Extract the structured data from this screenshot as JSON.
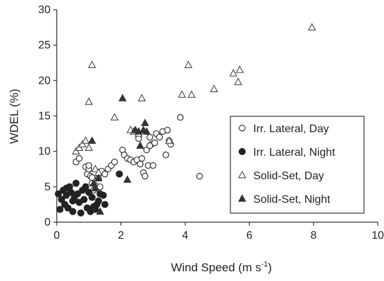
{
  "chart_data": {
    "type": "scatter",
    "xlabel": "Wind Speed (m s",
    "xlabel_sup": "-1",
    "xlabel_close": ")",
    "ylabel": "WDEL (%)",
    "xlim": [
      0,
      10
    ],
    "ylim": [
      0,
      30
    ],
    "x_ticks": [
      0,
      2,
      4,
      6,
      8,
      10
    ],
    "y_ticks": [
      0,
      5,
      10,
      15,
      20,
      25,
      30
    ],
    "x_tick_labels": [
      "0",
      "2",
      "4",
      "6",
      "8",
      "10"
    ],
    "y_tick_labels": [
      "0",
      "5",
      "10",
      "15",
      "20",
      "25",
      "30"
    ],
    "grid": false,
    "legend_position": "right",
    "series": [
      {
        "name": "Irr. Lateral, Day",
        "marker": "circle-open",
        "points": [
          [
            0.6,
            8.5
          ],
          [
            0.7,
            9.0
          ],
          [
            0.9,
            7.8
          ],
          [
            0.95,
            6.8
          ],
          [
            1.0,
            7.5
          ],
          [
            1.05,
            6.5
          ],
          [
            1.1,
            5.5
          ],
          [
            1.15,
            4.5
          ],
          [
            1.2,
            5.2
          ],
          [
            1.3,
            6.2
          ],
          [
            1.35,
            5.0
          ],
          [
            1.4,
            7.2
          ],
          [
            1.5,
            6.8
          ],
          [
            1.6,
            7.5
          ],
          [
            1.7,
            8.0
          ],
          [
            1.8,
            8.5
          ],
          [
            2.05,
            10.2
          ],
          [
            2.1,
            9.5
          ],
          [
            2.2,
            9.0
          ],
          [
            2.3,
            8.8
          ],
          [
            2.4,
            8.5
          ],
          [
            2.5,
            8.8
          ],
          [
            2.55,
            11.8
          ],
          [
            2.6,
            8.2
          ],
          [
            2.65,
            9.0
          ],
          [
            2.7,
            7.0
          ],
          [
            2.75,
            6.5
          ],
          [
            2.8,
            10.2
          ],
          [
            2.85,
            8.0
          ],
          [
            2.9,
            12.0
          ],
          [
            2.95,
            11.0
          ],
          [
            3.0,
            8.0
          ],
          [
            3.05,
            11.2
          ],
          [
            3.1,
            12.5
          ],
          [
            3.2,
            12.0
          ],
          [
            3.3,
            12.8
          ],
          [
            3.4,
            9.5
          ],
          [
            3.45,
            13.0
          ],
          [
            3.5,
            11.5
          ],
          [
            3.55,
            11.0
          ],
          [
            3.85,
            14.8
          ],
          [
            4.45,
            6.5
          ],
          [
            1.0,
            8.0
          ],
          [
            1.1,
            6.3
          ],
          [
            2.9,
            10.8
          ]
        ]
      },
      {
        "name": "Irr. Lateral, Night",
        "marker": "circle-filled",
        "points": [
          [
            0.05,
            4.0
          ],
          [
            0.1,
            1.8
          ],
          [
            0.15,
            3.2
          ],
          [
            0.2,
            4.5
          ],
          [
            0.25,
            2.5
          ],
          [
            0.3,
            3.8
          ],
          [
            0.35,
            2.0
          ],
          [
            0.4,
            5.0
          ],
          [
            0.45,
            4.2
          ],
          [
            0.5,
            1.5
          ],
          [
            0.55,
            3.5
          ],
          [
            0.6,
            5.5
          ],
          [
            0.65,
            4.0
          ],
          [
            0.7,
            2.8
          ],
          [
            0.75,
            1.3
          ],
          [
            0.8,
            4.5
          ],
          [
            0.85,
            3.2
          ],
          [
            0.9,
            5.0
          ],
          [
            0.95,
            2.0
          ],
          [
            1.0,
            4.2
          ],
          [
            1.05,
            1.5
          ],
          [
            1.1,
            3.5
          ],
          [
            1.15,
            2.2
          ],
          [
            1.2,
            1.8
          ],
          [
            1.25,
            2.5
          ],
          [
            1.3,
            3.0
          ],
          [
            1.35,
            4.0
          ],
          [
            1.45,
            3.8
          ],
          [
            1.5,
            2.5
          ],
          [
            1.95,
            6.8
          ],
          [
            0.3,
            4.8
          ],
          [
            0.5,
            3.0
          ]
        ]
      },
      {
        "name": "Solid-Set, Day",
        "marker": "triangle-open",
        "points": [
          [
            0.6,
            10.0
          ],
          [
            0.7,
            10.5
          ],
          [
            0.8,
            11.0
          ],
          [
            0.9,
            11.5
          ],
          [
            1.0,
            10.5
          ],
          [
            1.0,
            17.0
          ],
          [
            1.1,
            22.2
          ],
          [
            1.2,
            7.5
          ],
          [
            1.3,
            7.0
          ],
          [
            1.8,
            14.8
          ],
          [
            2.3,
            13.0
          ],
          [
            2.4,
            12.8
          ],
          [
            2.55,
            12.5
          ],
          [
            2.65,
            17.5
          ],
          [
            3.5,
            11.5
          ],
          [
            3.9,
            18.0
          ],
          [
            4.1,
            22.2
          ],
          [
            4.2,
            18.0
          ],
          [
            4.9,
            18.8
          ],
          [
            5.5,
            21.0
          ],
          [
            5.65,
            19.8
          ],
          [
            5.7,
            21.5
          ],
          [
            7.95,
            27.5
          ]
        ]
      },
      {
        "name": "Solid-Set, Night",
        "marker": "triangle-filled",
        "points": [
          [
            1.1,
            11.5
          ],
          [
            1.15,
            5.5
          ],
          [
            1.2,
            4.8
          ],
          [
            1.3,
            6.2
          ],
          [
            1.35,
            1.5
          ],
          [
            2.05,
            17.5
          ],
          [
            2.2,
            6.0
          ],
          [
            2.45,
            13.0
          ],
          [
            2.55,
            12.8
          ],
          [
            2.6,
            10.8
          ],
          [
            2.7,
            13.0
          ],
          [
            2.75,
            14.0
          ],
          [
            2.8,
            12.8
          ]
        ]
      }
    ]
  }
}
